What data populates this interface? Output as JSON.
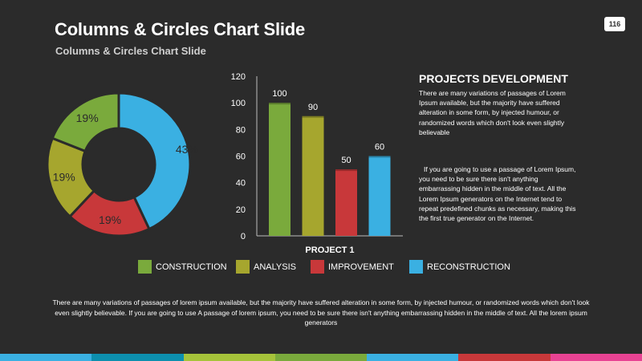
{
  "slide": {
    "title": "Columns & Circles Chart Slide",
    "subtitle": "Columns & Circles Chart Slide",
    "page_number": "116"
  },
  "side_panel": {
    "heading": "PROJECTS DEVELOPMENT",
    "paragraph1": "There are many variations of passages of Lorem Ipsum available, but the majority have suffered alteration in some form, by injected humour, or randomized words which don't look even slightly believable",
    "paragraph2": "If you are going to use a passage of Lorem Ipsum, you need to be sure there isn't anything embarrassing hidden in the middle of text. All the Lorem Ipsum generators on the Internet tend to repeat predefined chunks as necessary, making this the first true generator on the Internet."
  },
  "legend": [
    {
      "label": "CONSTRUCTION",
      "color": "#7aaa3c"
    },
    {
      "label": "ANALYSIS",
      "color": "#a6a62e"
    },
    {
      "label": "IMPROVEMENT",
      "color": "#c8383a"
    },
    {
      "label": "RECONSTRUCTION",
      "color": "#3ab0e2"
    }
  ],
  "footer": {
    "text": "There are many variations of passages of lorem ipsum available, but the majority have suffered alteration in some form, by injected humour, or randomized words which don't look even slightly believable. If you are going to use A passage of lorem ipsum, you need to be sure there isn't anything embarrassing hidden in the middle of text. All the lorem ipsum generators"
  },
  "bottom_bar_colors": [
    "#3ab0e2",
    "#0d8fae",
    "#a6c33a",
    "#7aaa3c",
    "#3ab0e2",
    "#c8383a",
    "#e84393"
  ],
  "chart_data": [
    {
      "type": "pie",
      "variant": "donut",
      "slices": [
        {
          "series": "RECONSTRUCTION",
          "value": 43,
          "label": "43%",
          "color": "#3ab0e2"
        },
        {
          "series": "IMPROVEMENT",
          "value": 19,
          "label": "19%",
          "color": "#c8383a"
        },
        {
          "series": "ANALYSIS",
          "value": 19,
          "label": "19%",
          "color": "#a6a62e"
        },
        {
          "series": "CONSTRUCTION",
          "value": 19,
          "label": "19%",
          "color": "#7aaa3c"
        }
      ]
    },
    {
      "type": "bar",
      "categories": [
        "PROJECT 1"
      ],
      "series": [
        {
          "name": "CONSTRUCTION",
          "values": [
            100
          ],
          "color": "#7aaa3c"
        },
        {
          "name": "ANALYSIS",
          "values": [
            90
          ],
          "color": "#a6a62e"
        },
        {
          "name": "IMPROVEMENT",
          "values": [
            50
          ],
          "color": "#c8383a"
        },
        {
          "name": "RECONSTRUCTION",
          "values": [
            60
          ],
          "color": "#3ab0e2"
        }
      ],
      "ylim": [
        0,
        120
      ],
      "yticks": [
        0,
        20,
        40,
        60,
        80,
        100,
        120
      ],
      "grid": false,
      "legend": "bottom"
    }
  ]
}
